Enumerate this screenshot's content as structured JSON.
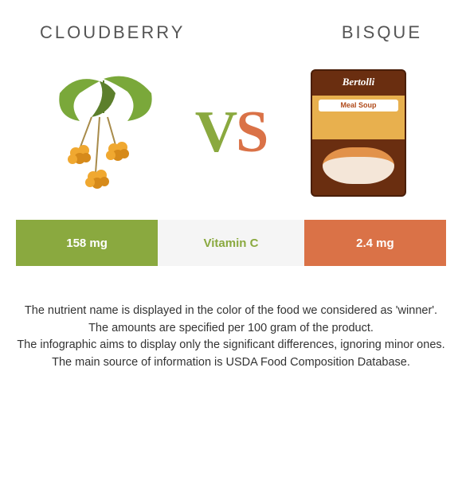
{
  "header": {
    "left_title": "Cloudberry",
    "right_title": "Bisque"
  },
  "vs": {
    "v": "V",
    "s": "S"
  },
  "colors": {
    "left": "#8aa93f",
    "right": "#da7247",
    "mid_bg": "#f5f5f5",
    "mid_text": "#8aa93f",
    "leaf": "#7aa83a",
    "leaf_dark": "#5c7f2c",
    "berry": "#f0a830",
    "berry_dark": "#d68a1a"
  },
  "comparison": {
    "nutrient": "Vitamin C",
    "left_value": "158 mg",
    "right_value": "2.4 mg",
    "left_width_pct": 33,
    "mid_width_pct": 34,
    "right_width_pct": 33,
    "winner": "left"
  },
  "bisque_label": {
    "brand": "Bertolli",
    "sub": "Meal Soup"
  },
  "notes": [
    "The nutrient name is displayed in the color of the food we considered as 'winner'.",
    "The amounts are specified per 100 gram of the product.",
    "The infographic aims to display only the significant differences, ignoring minor ones.",
    "The main source of information is USDA Food Composition Database."
  ]
}
